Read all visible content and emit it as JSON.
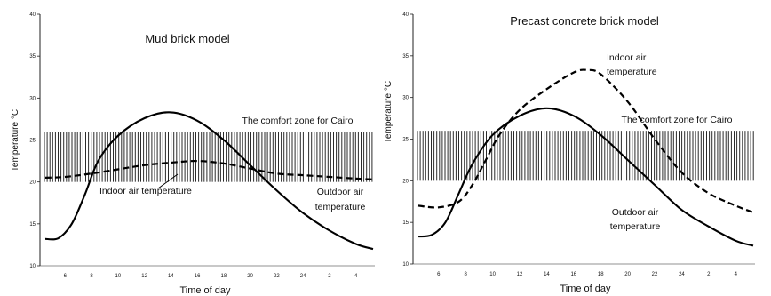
{
  "chart_data": [
    {
      "type": "line",
      "title": "Mud brick model",
      "xlabel": "Time of day",
      "ylabel": "Temperature °C",
      "x_tick_labels": [
        "6",
        "8",
        "10",
        "12",
        "14",
        "16",
        "18",
        "20",
        "22",
        "24",
        "2",
        "4"
      ],
      "y_tick_labels": [
        "10",
        "15",
        "20",
        "25",
        "30",
        "35",
        "40"
      ],
      "ylim": [
        10,
        40
      ],
      "comfort_zone": {
        "label": "The comfort zone for Cairo",
        "range": [
          20,
          26
        ]
      },
      "annotations": {
        "indoor": [
          "Indoor air temperature"
        ],
        "outdoor": [
          "Outdoor air",
          "temperature"
        ]
      },
      "series": [
        {
          "name": "Outdoor air temperature",
          "style": "solid",
          "points": [
            [
              4.5,
              13.2
            ],
            [
              5.5,
              13.3
            ],
            [
              6.5,
              15
            ],
            [
              7.5,
              18.5
            ],
            [
              8.5,
              22.5
            ],
            [
              10,
              25.5
            ],
            [
              12,
              27.6
            ],
            [
              14,
              28.3
            ],
            [
              16,
              27.3
            ],
            [
              18,
              25
            ],
            [
              20,
              22
            ],
            [
              22,
              19
            ],
            [
              24,
              16.3
            ],
            [
              26,
              14.2
            ],
            [
              28,
              12.6
            ],
            [
              29.3,
              12
            ]
          ]
        },
        {
          "name": "Indoor air temperature",
          "style": "dashed",
          "points": [
            [
              4.5,
              20.5
            ],
            [
              6,
              20.6
            ],
            [
              8,
              21
            ],
            [
              10,
              21.5
            ],
            [
              12,
              22
            ],
            [
              14,
              22.3
            ],
            [
              16,
              22.5
            ],
            [
              18,
              22.2
            ],
            [
              20,
              21.6
            ],
            [
              22,
              21
            ],
            [
              24,
              20.8
            ],
            [
              26,
              20.6
            ],
            [
              28,
              20.4
            ],
            [
              29.3,
              20.3
            ]
          ]
        }
      ]
    },
    {
      "type": "line",
      "title": "Precast concrete brick model",
      "xlabel": "Time of day",
      "ylabel": "Temperature °C",
      "x_tick_labels": [
        "6",
        "8",
        "10",
        "12",
        "14",
        "16",
        "18",
        "20",
        "22",
        "24",
        "2",
        "4"
      ],
      "y_tick_labels": [
        "10",
        "15",
        "20",
        "25",
        "30",
        "35",
        "40"
      ],
      "ylim": [
        10,
        40
      ],
      "comfort_zone": {
        "label": "The comfort zone for Cairo",
        "range": [
          20,
          26
        ]
      },
      "annotations": {
        "indoor": [
          "Indoor air",
          "temperature"
        ],
        "outdoor": [
          "Outdoor air",
          "temperature"
        ]
      },
      "series": [
        {
          "name": "Outdoor air temperature",
          "style": "solid",
          "points": [
            [
              4.5,
              13.3
            ],
            [
              5.5,
              13.5
            ],
            [
              6.5,
              15
            ],
            [
              7.5,
              18.5
            ],
            [
              8.5,
              22
            ],
            [
              10,
              25.5
            ],
            [
              12,
              27.8
            ],
            [
              14,
              28.7
            ],
            [
              16,
              27.8
            ],
            [
              18,
              25.5
            ],
            [
              20,
              22.5
            ],
            [
              22,
              19.5
            ],
            [
              24,
              16.5
            ],
            [
              26,
              14.5
            ],
            [
              28,
              12.8
            ],
            [
              29.3,
              12.2
            ]
          ]
        },
        {
          "name": "Indoor air temperature",
          "style": "dashed",
          "points": [
            [
              4.5,
              17
            ],
            [
              6,
              16.8
            ],
            [
              7.5,
              17.5
            ],
            [
              8.5,
              19.5
            ],
            [
              9.5,
              22.5
            ],
            [
              10.5,
              25.5
            ],
            [
              12,
              28.5
            ],
            [
              14,
              31
            ],
            [
              16,
              33
            ],
            [
              17,
              33.3
            ],
            [
              18,
              32.8
            ],
            [
              20,
              29.5
            ],
            [
              22,
              25
            ],
            [
              24,
              21
            ],
            [
              26,
              18.5
            ],
            [
              28,
              17
            ],
            [
              29.3,
              16.2
            ]
          ]
        }
      ]
    }
  ]
}
